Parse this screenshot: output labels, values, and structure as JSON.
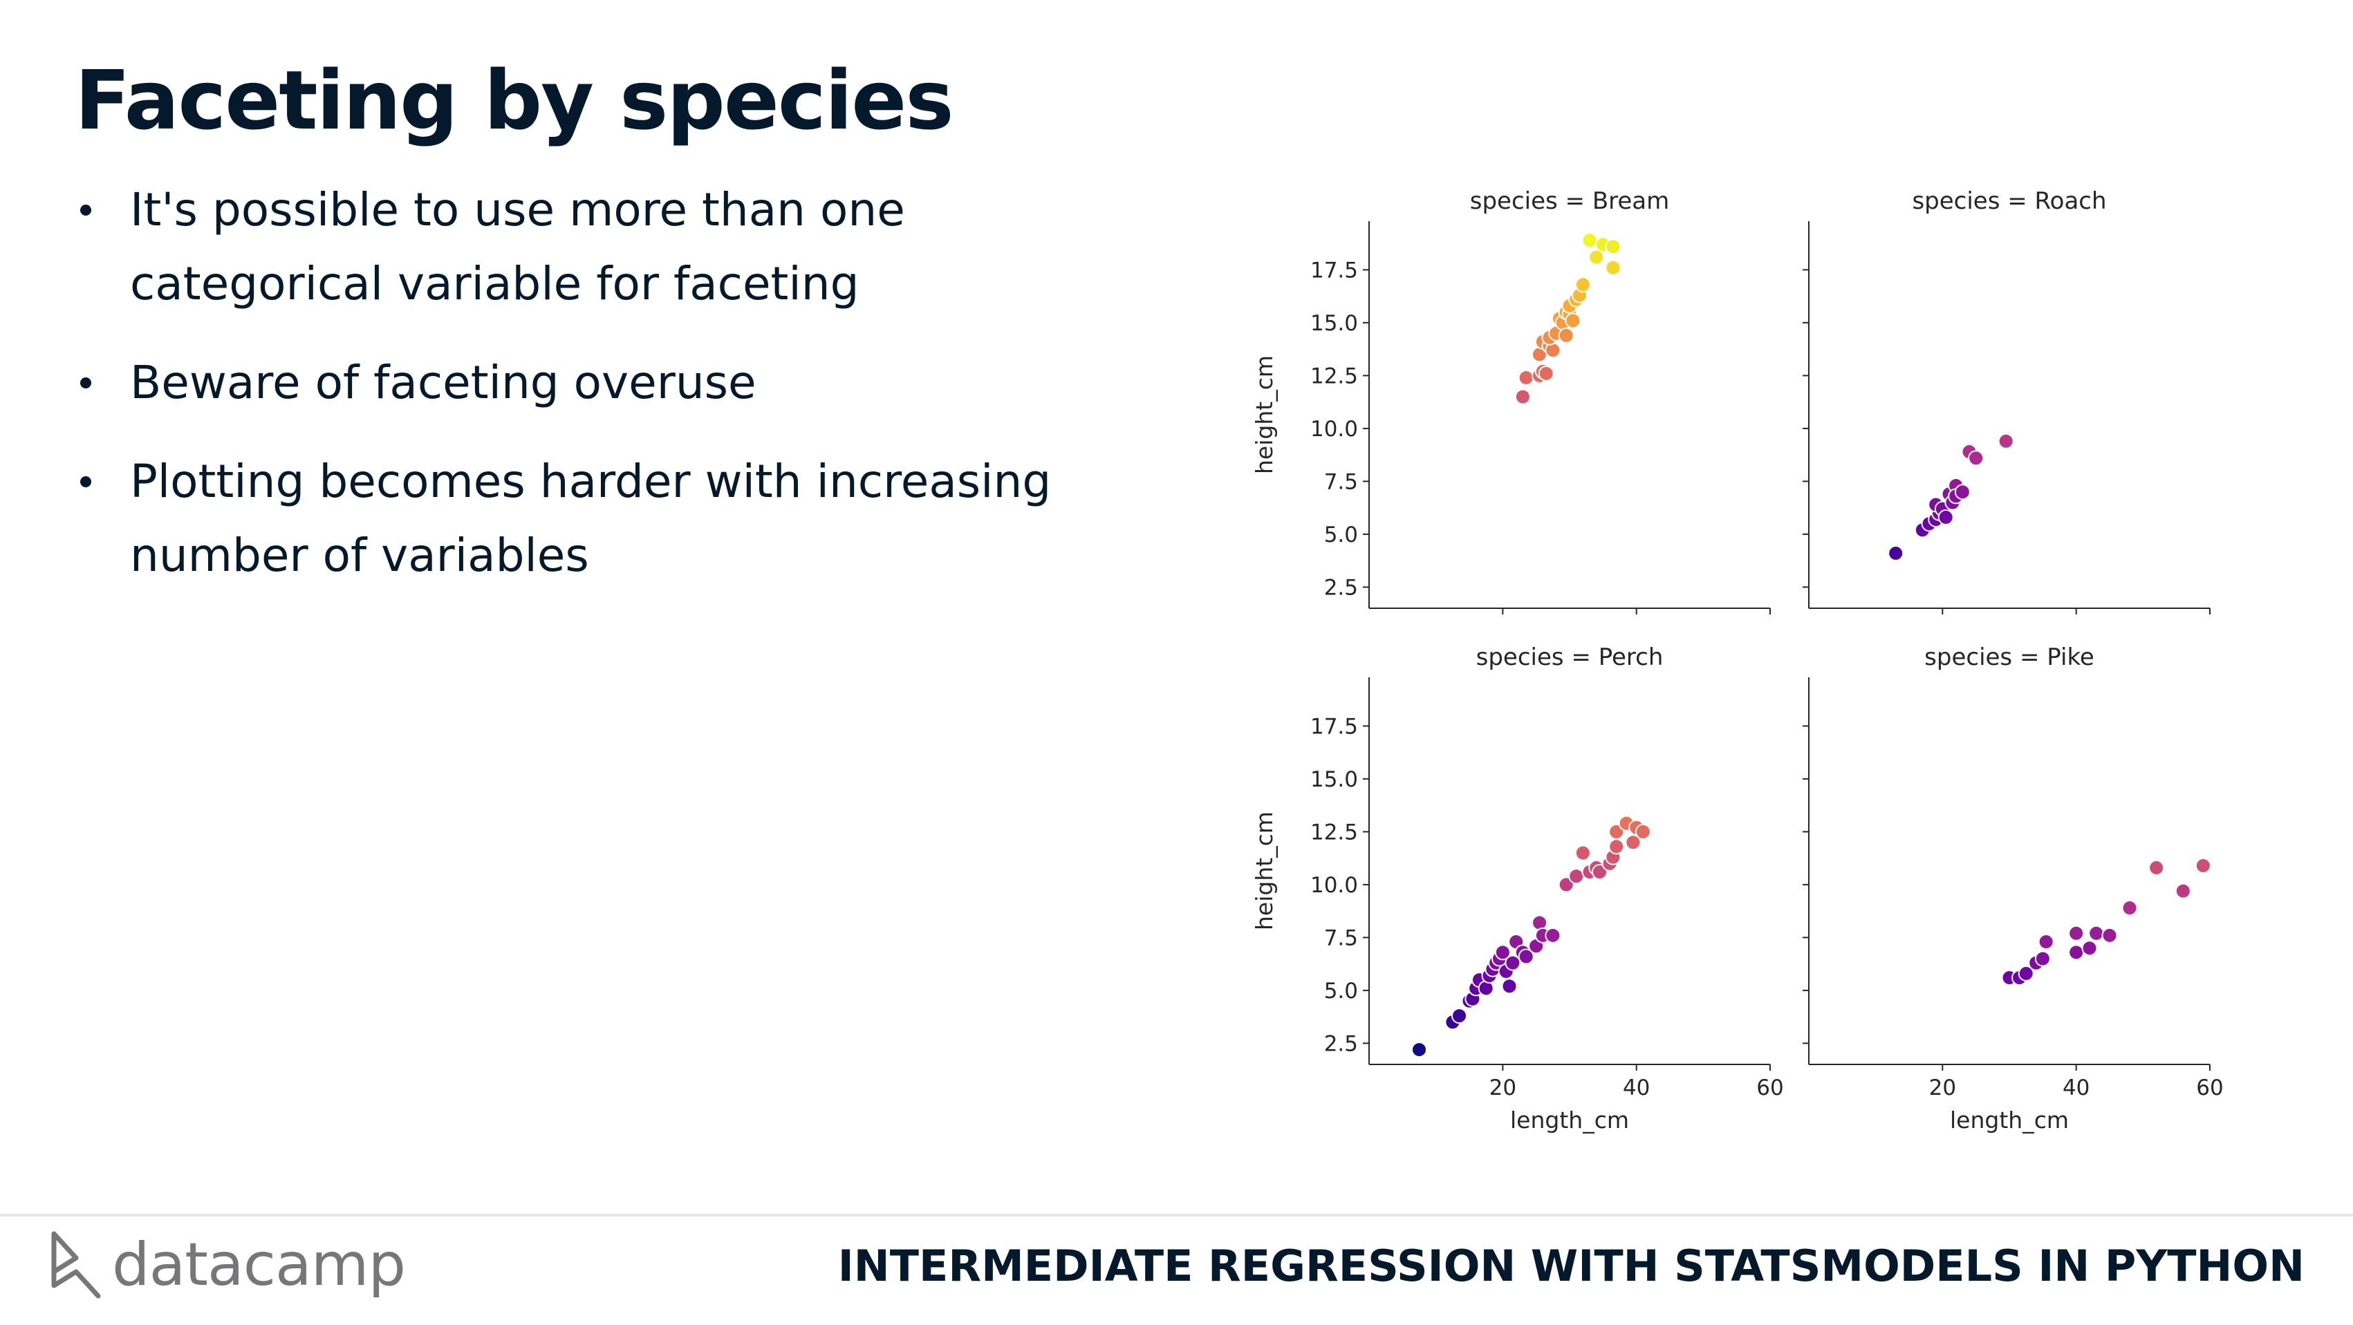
{
  "slide": {
    "title": "Faceting by species",
    "bullets": [
      "It's possible to use more than one categorical variable for faceting",
      "Beware of faceting overuse",
      "Plotting becomes harder with increasing number of variables"
    ]
  },
  "footer": {
    "logo_text": "datacamp",
    "course_title": "INTERMEDIATE REGRESSION WITH STATSMODELS IN PYTHON"
  },
  "chart_data": {
    "type": "scatter",
    "xlabel": "length_cm",
    "ylabel": "height_cm",
    "xlim": [
      0,
      60
    ],
    "ylim": [
      1.5,
      19.8
    ],
    "xticks": [
      20,
      40,
      60
    ],
    "yticks": [
      2.5,
      5.0,
      7.5,
      10.0,
      12.5,
      15.0,
      17.5
    ],
    "grid": false,
    "colormap": [
      "#0d0887",
      "#6a00a8",
      "#b12a90",
      "#e16462",
      "#fca636",
      "#f0f921"
    ],
    "color_range": [
      2,
      19
    ],
    "facets": [
      {
        "title": "species = Bream",
        "points": [
          [
            23,
            11.5
          ],
          [
            23.5,
            12.4
          ],
          [
            25.5,
            12.5
          ],
          [
            26,
            12.7
          ],
          [
            26.5,
            12.6
          ],
          [
            25.5,
            13.5
          ],
          [
            26,
            14.1
          ],
          [
            27,
            13.9
          ],
          [
            27.5,
            13.7
          ],
          [
            27,
            14.3
          ],
          [
            28,
            14.5
          ],
          [
            28.5,
            15.2
          ],
          [
            29,
            15.0
          ],
          [
            29.5,
            14.4
          ],
          [
            29.5,
            15.5
          ],
          [
            30,
            15.4
          ],
          [
            30.5,
            15.1
          ],
          [
            30,
            15.8
          ],
          [
            31,
            16.1
          ],
          [
            31.5,
            16.3
          ],
          [
            32,
            16.8
          ],
          [
            33,
            18.9
          ],
          [
            34,
            18.1
          ],
          [
            35,
            18.7
          ],
          [
            36.5,
            18.6
          ],
          [
            36.5,
            17.6
          ]
        ]
      },
      {
        "title": "species = Roach",
        "points": [
          [
            13,
            4.1
          ],
          [
            17,
            5.2
          ],
          [
            18,
            5.5
          ],
          [
            19,
            5.7
          ],
          [
            19.5,
            6.0
          ],
          [
            19,
            6.4
          ],
          [
            20,
            6.2
          ],
          [
            20.5,
            5.8
          ],
          [
            21,
            6.9
          ],
          [
            21.5,
            6.5
          ],
          [
            22,
            7.3
          ],
          [
            22,
            6.8
          ],
          [
            23,
            7.0
          ],
          [
            24,
            8.9
          ],
          [
            25,
            8.6
          ],
          [
            29.5,
            9.4
          ]
        ]
      },
      {
        "title": "species = Perch",
        "points": [
          [
            7.5,
            2.2
          ],
          [
            12.5,
            3.5
          ],
          [
            13.5,
            3.8
          ],
          [
            15,
            4.5
          ],
          [
            15.5,
            4.6
          ],
          [
            16,
            5.1
          ],
          [
            16.5,
            5.5
          ],
          [
            17.5,
            5.1
          ],
          [
            18,
            5.7
          ],
          [
            18.5,
            6.0
          ],
          [
            19,
            6.3
          ],
          [
            19.5,
            6.5
          ],
          [
            20,
            6.8
          ],
          [
            20.5,
            5.9
          ],
          [
            21,
            5.2
          ],
          [
            21.5,
            6.3
          ],
          [
            22,
            7.3
          ],
          [
            23,
            6.8
          ],
          [
            23.5,
            6.6
          ],
          [
            25,
            7.1
          ],
          [
            25.5,
            8.2
          ],
          [
            26,
            7.6
          ],
          [
            27.5,
            7.6
          ],
          [
            29.5,
            10.0
          ],
          [
            31,
            10.4
          ],
          [
            32,
            11.5
          ],
          [
            33,
            10.6
          ],
          [
            34,
            10.8
          ],
          [
            34.5,
            10.6
          ],
          [
            36,
            11.0
          ],
          [
            36.5,
            11.3
          ],
          [
            37,
            11.8
          ],
          [
            37,
            12.5
          ],
          [
            38.5,
            12.9
          ],
          [
            39.5,
            12.0
          ],
          [
            40,
            12.7
          ],
          [
            41,
            12.5
          ]
        ]
      },
      {
        "title": "species = Pike",
        "points": [
          [
            30,
            5.6
          ],
          [
            31.5,
            5.6
          ],
          [
            32.5,
            5.8
          ],
          [
            34,
            6.3
          ],
          [
            35,
            6.5
          ],
          [
            35.5,
            7.3
          ],
          [
            40,
            6.8
          ],
          [
            40,
            7.7
          ],
          [
            42,
            7.0
          ],
          [
            43,
            7.7
          ],
          [
            45,
            7.6
          ],
          [
            48,
            8.9
          ],
          [
            52,
            10.8
          ],
          [
            56,
            9.7
          ],
          [
            59,
            10.9
          ]
        ]
      }
    ]
  }
}
